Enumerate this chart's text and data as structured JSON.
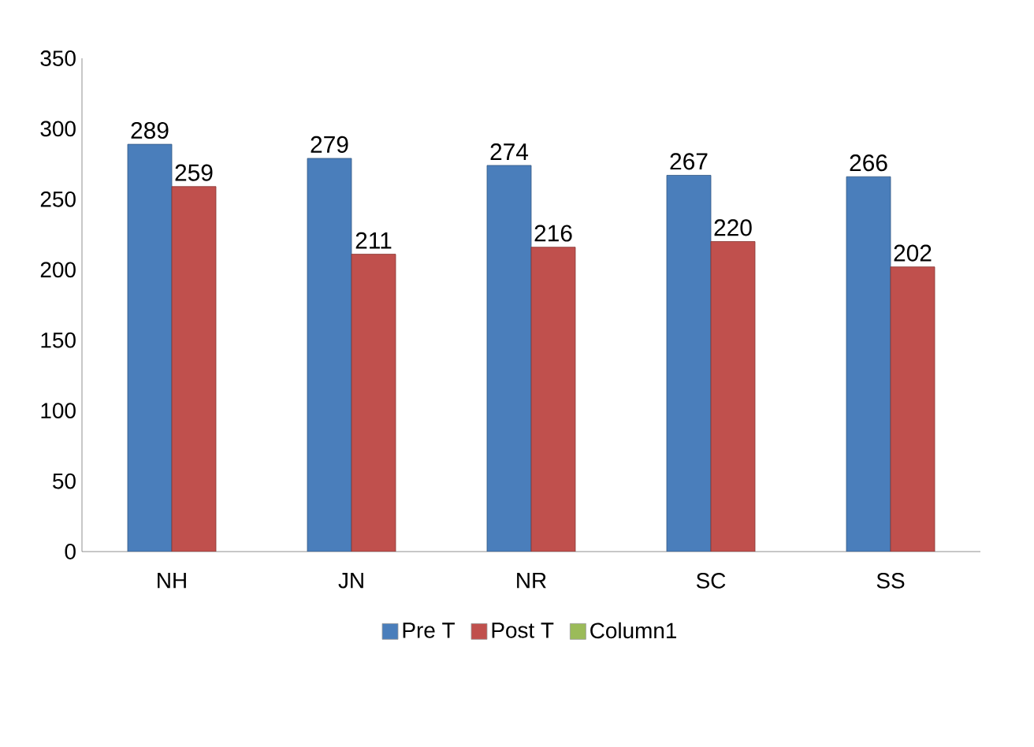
{
  "chart_data": {
    "type": "bar",
    "categories": [
      "NH",
      "JN",
      "NR",
      "SC",
      "SS"
    ],
    "series": [
      {
        "name": "Pre T",
        "color": "#4a7ebb",
        "values": [
          289,
          279,
          274,
          267,
          266
        ]
      },
      {
        "name": "Post T",
        "color": "#c0504d",
        "values": [
          259,
          211,
          216,
          220,
          202
        ]
      },
      {
        "name": "Column1",
        "color": "#9bbb59",
        "values": [
          null,
          null,
          null,
          null,
          null
        ]
      }
    ],
    "ylim": [
      0,
      350
    ],
    "yticks": [
      0,
      50,
      100,
      150,
      200,
      250,
      300,
      350
    ],
    "data_labels": true,
    "grid": false,
    "legend": "bottom"
  }
}
